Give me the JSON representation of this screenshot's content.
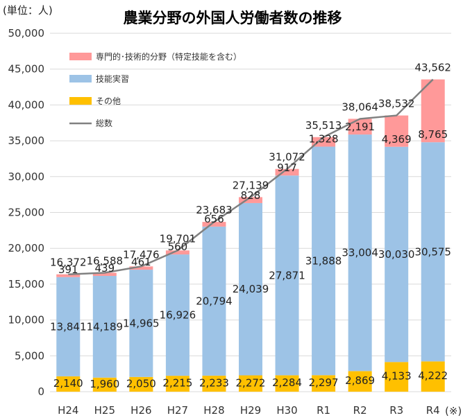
{
  "chart_data": {
    "type": "bar",
    "title": "農業分野の外国人労働者数の推移",
    "unit_label": "(単位：人)",
    "footnote_mark": "(※)",
    "categories": [
      "H24",
      "H25",
      "H26",
      "H27",
      "H28",
      "H29",
      "H30",
      "R1",
      "R2",
      "R3",
      "R4"
    ],
    "stacked": true,
    "ylim": [
      0,
      50000
    ],
    "yticks": [
      0,
      5000,
      10000,
      15000,
      20000,
      25000,
      30000,
      35000,
      40000,
      45000,
      50000
    ],
    "ytick_labels": [
      "0",
      "5,000",
      "10,000",
      "15,000",
      "20,000",
      "25,000",
      "30,000",
      "35,000",
      "40,000",
      "45,000",
      "50,000"
    ],
    "grid": true,
    "legend_position": "top-left",
    "series": [
      {
        "name": "その他",
        "color": "#ffc000",
        "values": [
          2140,
          1960,
          2050,
          2215,
          2233,
          2272,
          2284,
          2297,
          2869,
          4133,
          4222
        ],
        "labels": [
          "2,140",
          "1,960",
          "2,050",
          "2,215",
          "2,233",
          "2,272",
          "2,284",
          "2,297",
          "2,869",
          "4,133",
          "4,222"
        ]
      },
      {
        "name": "技能実習",
        "color": "#9dc3e6",
        "values": [
          13841,
          14189,
          14965,
          16926,
          20794,
          24039,
          27871,
          31888,
          33004,
          30030,
          30575
        ],
        "labels": [
          "13,841",
          "14,189",
          "14,965",
          "16,926",
          "20,794",
          "24,039",
          "27,871",
          "31,888",
          "33,004",
          "30,030",
          "30,575"
        ]
      },
      {
        "name": "専門的･技術的分野（特定技能を含む）",
        "color": "#ff9999",
        "values": [
          391,
          439,
          461,
          560,
          656,
          828,
          917,
          1328,
          2191,
          4369,
          8765
        ],
        "labels": [
          "391",
          "439",
          "461",
          "560",
          "656",
          "828",
          "917",
          "1,328",
          "2,191",
          "4,369",
          "8,765"
        ]
      }
    ],
    "total": {
      "name": "総数",
      "color": "#808080",
      "values": [
        16372,
        16588,
        17476,
        19701,
        23683,
        27139,
        31072,
        35513,
        38064,
        38532,
        43562
      ],
      "labels": [
        "16,372",
        "16,588",
        "17,476",
        "19,701",
        "23,683",
        "27,139",
        "31,072",
        "35,513",
        "38,064",
        "38,532",
        "43,562"
      ]
    },
    "legend_order": [
      "専門的･技術的分野（特定技能を含む）",
      "技能実習",
      "その他",
      "総数"
    ]
  }
}
